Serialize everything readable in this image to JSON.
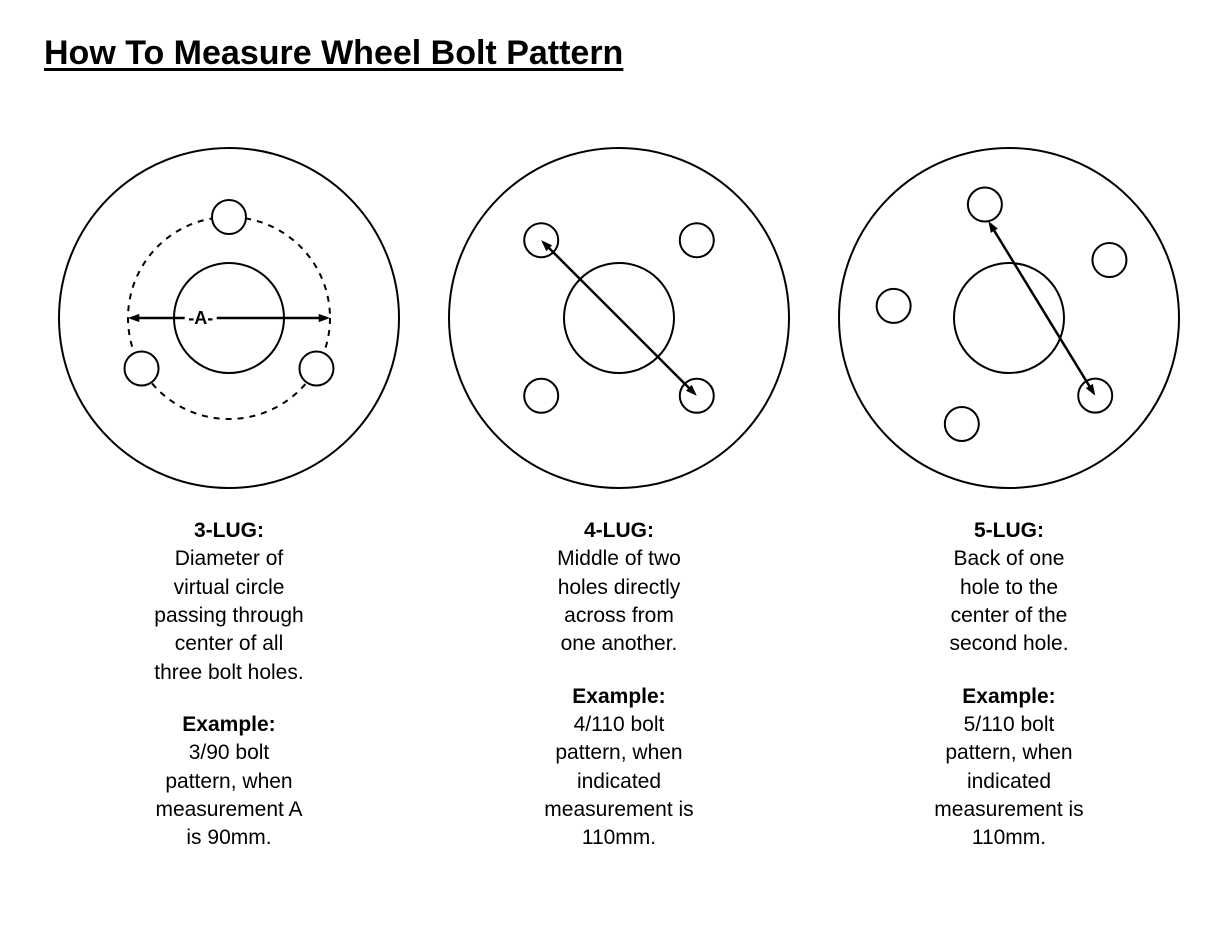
{
  "colors": {
    "bg": "#ffffff",
    "stroke": "#000000"
  },
  "title": "How To Measure Wheel Bolt Pattern",
  "title_fontsize": 34,
  "body_fontsize": 21,
  "diagrams": {
    "outer_d": 340,
    "hub_d": 110,
    "bolt_d": 34,
    "stroke_w": 2,
    "arrow_w": 2.5,
    "three_lug": {
      "type": "wheel-diagram",
      "pcd_d": 202,
      "lug_angles_deg": [
        270,
        30,
        150
      ],
      "pcd_dashed": true,
      "letter": "A",
      "arrow": {
        "from_angle_deg": 180,
        "to_angle_deg": 0,
        "two_heads": true,
        "on_pcd": true
      }
    },
    "four_lug": {
      "type": "wheel-diagram",
      "pcd_d": 220,
      "lug_angles_deg": [
        225,
        45,
        135,
        315
      ],
      "pcd_dashed": false,
      "arrow": {
        "from_lug_idx": 0,
        "to_lug_idx": 1,
        "two_heads": true
      }
    },
    "five_lug": {
      "type": "wheel-diagram",
      "pcd_d": 232,
      "lug_angles_deg": [
        258,
        330,
        42,
        114,
        186
      ],
      "pcd_dashed": false,
      "arrow": {
        "from_lug_idx": 0,
        "to_lug_idx": 2,
        "two_heads": true,
        "from_offset_back": true
      }
    }
  },
  "panels": [
    {
      "lug_id": "three_lug",
      "lug_title": "3-LUG:",
      "description": "Diameter of\nvirtual circle\npassing through\ncenter of all\nthree bolt holes.",
      "example_title": "Example:",
      "example_text": "3/90 bolt\npattern, when\nmeasurement A\nis 90mm."
    },
    {
      "lug_id": "four_lug",
      "lug_title": "4-LUG:",
      "description": "Middle of two\nholes directly\nacross from\none another.",
      "example_title": "Example:",
      "example_text": "4/110 bolt\npattern, when\nindicated\nmeasurement is\n110mm."
    },
    {
      "lug_id": "five_lug",
      "lug_title": "5-LUG:",
      "description": "Back of one\nhole to the\ncenter of the\nsecond hole.",
      "example_title": "Example:",
      "example_text": "5/110 bolt\npattern, when\nindicated\nmeasurement is\n110mm."
    }
  ]
}
